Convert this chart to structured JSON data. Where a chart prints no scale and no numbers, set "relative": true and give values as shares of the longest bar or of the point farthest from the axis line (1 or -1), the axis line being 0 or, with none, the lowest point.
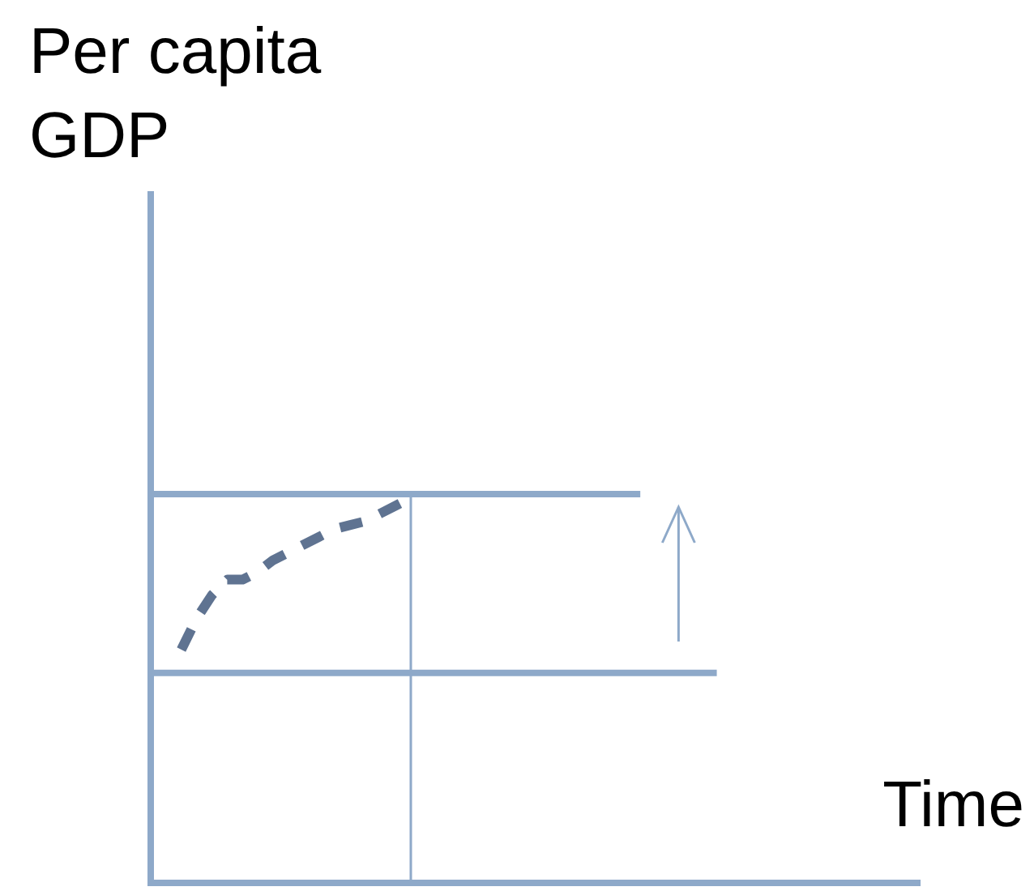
{
  "chart_data": {
    "type": "line",
    "relative": true,
    "xlabel": "Time",
    "ylabel": "Per capita GDP",
    "categories": [
      null,
      null,
      null,
      null,
      null,
      null,
      null,
      null,
      null,
      null,
      null,
      null,
      null,
      null,
      null,
      null,
      null,
      null,
      null,
      null,
      null,
      null,
      null,
      null,
      null,
      null,
      null,
      null,
      null,
      null,
      null,
      null,
      null,
      null,
      null,
      null,
      null,
      null,
      null,
      null,
      null,
      null,
      null,
      null,
      null,
      null,
      null,
      null,
      null,
      null,
      null
    ],
    "series": [
      {
        "color": "#8ea9c9",
        "values": [
          1,
          1,
          1,
          1,
          1,
          1,
          1,
          1,
          1,
          1,
          1,
          1,
          1,
          1,
          1,
          1,
          1,
          1,
          1,
          1,
          1,
          1,
          1,
          1,
          1,
          1,
          1,
          1,
          1,
          1,
          1,
          1,
          1,
          null,
          null,
          null,
          null,
          null,
          null,
          null,
          null,
          null,
          null,
          null,
          null,
          null,
          null,
          null,
          null,
          null,
          null
        ]
      },
      {
        "color": "#8ea9c9",
        "values": [
          0.54,
          0.54,
          0.54,
          0.54,
          0.54,
          0.54,
          0.54,
          0.54,
          0.54,
          0.54,
          0.54,
          0.54,
          0.54,
          0.54,
          0.54,
          0.54,
          0.54,
          0.54,
          0.54,
          0.54,
          0.54,
          0.54,
          0.54,
          0.54,
          0.54,
          0.54,
          0.54,
          0.54,
          0.54,
          0.54,
          0.54,
          0.54,
          0.54,
          0.54,
          0.54,
          0.54,
          0.54,
          0.54,
          null,
          null,
          null,
          null,
          null,
          null,
          null,
          null,
          null,
          null,
          null,
          null,
          null
        ]
      },
      {
        "color": "#5f7391",
        "line_style": "dashed",
        "values": [
          null,
          null,
          0.6,
          0.68,
          0.74,
          0.78,
          0.78,
          0.8,
          0.83,
          0.85,
          0.87,
          0.89,
          0.91,
          0.92,
          0.93,
          0.95,
          0.97,
          0.99,
          null,
          null,
          null,
          null,
          null,
          null,
          null,
          null,
          null,
          null,
          null,
          null,
          null,
          null,
          null,
          null,
          null,
          null,
          null,
          null,
          null,
          null,
          null,
          null,
          null,
          null,
          null,
          null,
          null,
          null,
          null,
          null,
          null
        ]
      }
    ]
  }
}
